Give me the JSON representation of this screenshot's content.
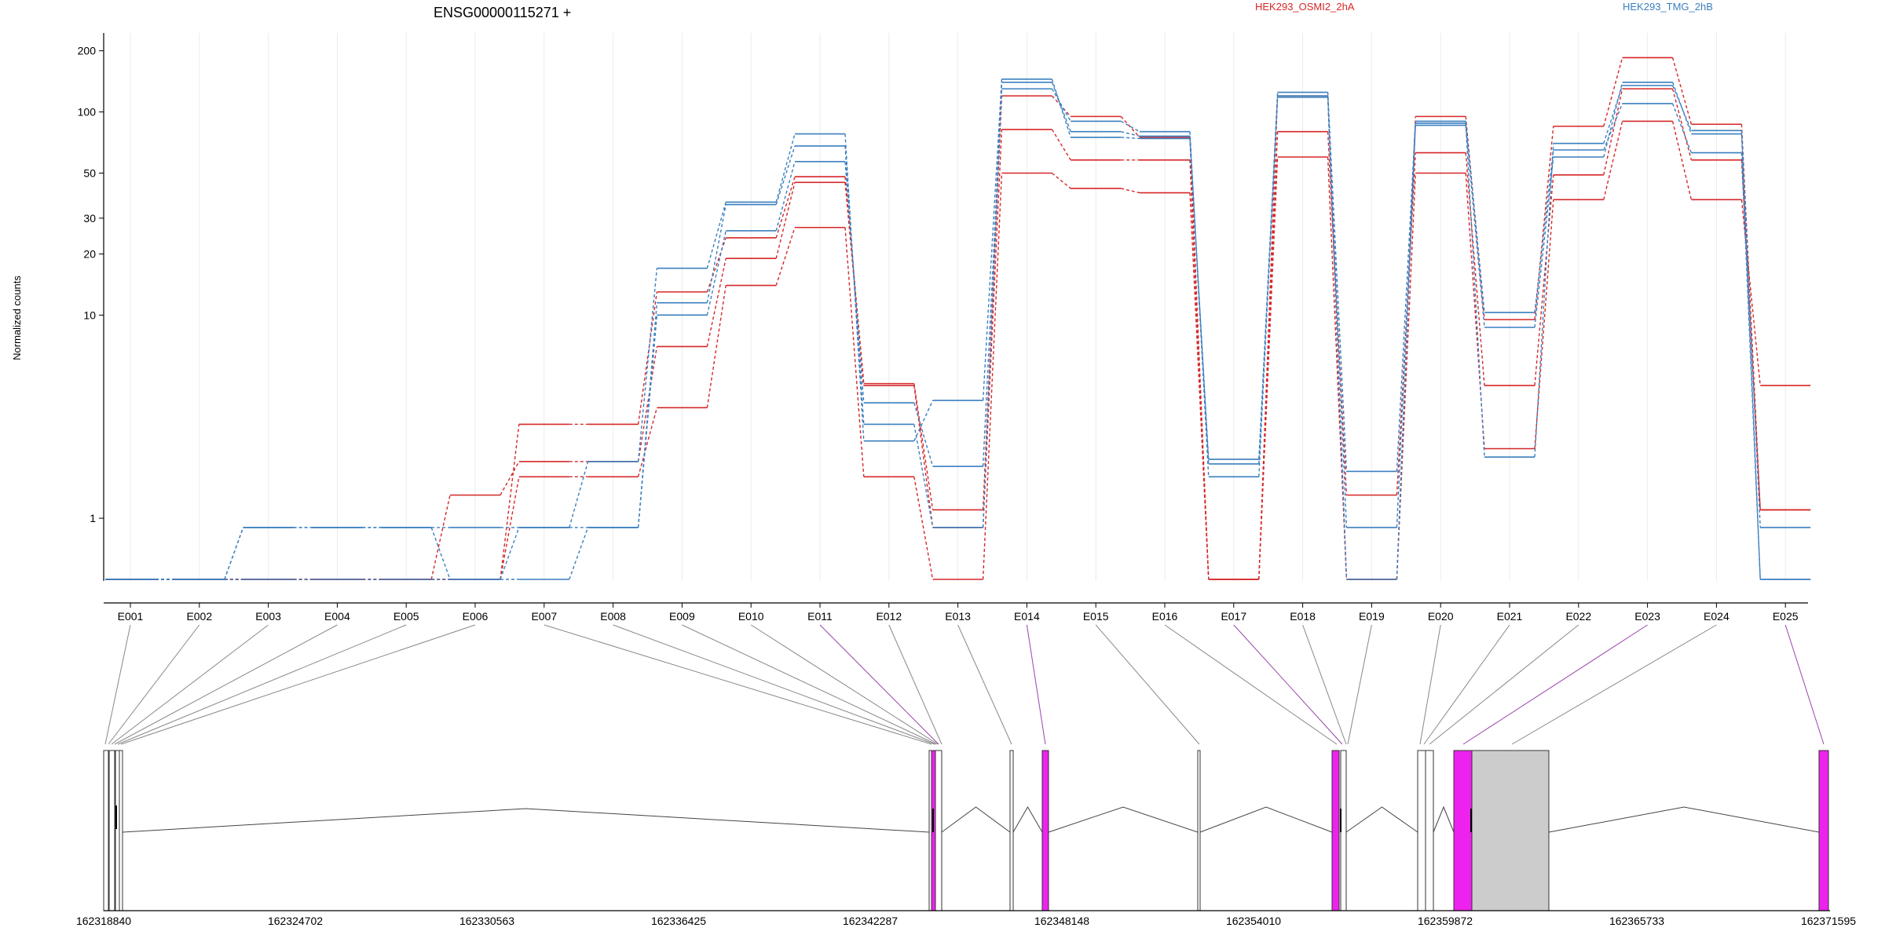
{
  "chart_data": [
    {
      "type": "line",
      "title": "ENSG00000115271 +",
      "ylabel": "Normalized counts",
      "yscale": "log",
      "ylim": [
        0.5,
        220
      ],
      "yticks": [
        1,
        10,
        20,
        30,
        50,
        100,
        200
      ],
      "grid": true,
      "categories": [
        "E001",
        "E002",
        "E003",
        "E004",
        "E005",
        "E006",
        "E007",
        "E008",
        "E009",
        "E010",
        "E011",
        "E012",
        "E013",
        "E014",
        "E015",
        "E016",
        "E017",
        "E018",
        "E019",
        "E020",
        "E021",
        "E022",
        "E023",
        "E024",
        "E025"
      ],
      "groups": [
        {
          "name": "HEK293_OSMI2_2hA",
          "color": "#d62728"
        },
        {
          "name": "HEK293_TMG_2hB",
          "color": "#3a7fbf"
        }
      ],
      "series": [
        {
          "group": "HEK293_OSMI2_2hA",
          "values": [
            0.5,
            0.5,
            0.5,
            0.5,
            0.5,
            0.5,
            1.6,
            1.6,
            3.5,
            14,
            27,
            1.6,
            0.5,
            50,
            42,
            40,
            0.5,
            60,
            0.5,
            50,
            2.2,
            37,
            90,
            37,
            4.5
          ]
        },
        {
          "group": "HEK293_OSMI2_2hA",
          "values": [
            0.5,
            0.5,
            0.5,
            0.5,
            0.5,
            1.3,
            1.9,
            1.9,
            7,
            19,
            45,
            4.5,
            0.9,
            82,
            58,
            58,
            0.5,
            80,
            1.3,
            63,
            4.5,
            49,
            130,
            58,
            1.1
          ]
        },
        {
          "group": "HEK293_OSMI2_2hA",
          "values": [
            0.5,
            0.5,
            0.5,
            0.5,
            0.5,
            0.5,
            2.9,
            2.9,
            13,
            24,
            48,
            4.6,
            1.1,
            120,
            95,
            75,
            0.5,
            120,
            0.5,
            95,
            9.5,
            85,
            185,
            87,
            1.1
          ]
        },
        {
          "group": "HEK293_TMG_2hB",
          "values": [
            0.5,
            0.5,
            0.9,
            0.9,
            0.9,
            0.5,
            0.5,
            0.9,
            10,
            26,
            57,
            3.7,
            1.8,
            130,
            90,
            80,
            1.6,
            120,
            0.5,
            88,
            2,
            70,
            135,
            81,
            0.9
          ]
        },
        {
          "group": "HEK293_TMG_2hB",
          "values": [
            0.5,
            0.5,
            0.5,
            0.5,
            0.5,
            0.5,
            0.9,
            0.9,
            11.5,
            35,
            68,
            2.9,
            0.9,
            140,
            80,
            76,
            1.85,
            125,
            1.7,
            90,
            10.3,
            65,
            110,
            63,
            0.5
          ]
        },
        {
          "group": "HEK293_TMG_2hB",
          "values": [
            0.5,
            0.5,
            0.9,
            0.9,
            0.9,
            0.9,
            0.9,
            1.9,
            17,
            36,
            78,
            2.4,
            3.8,
            145,
            75,
            74,
            1.95,
            118,
            0.9,
            86,
            8.7,
            60,
            140,
            78,
            0.5
          ]
        }
      ]
    },
    {
      "type": "diagram",
      "coordinate_ticks": [
        "162318840",
        "162324702",
        "162330563",
        "162336425",
        "162342287",
        "162348148",
        "162354010",
        "162359872",
        "162365733",
        "162371595"
      ],
      "exon_mapping": [
        "E001",
        "E002",
        "E003",
        "E004",
        "E005",
        "E006",
        "E007",
        "E008",
        "E009",
        "E010",
        "E011",
        "E012",
        "E013",
        "E014",
        "E015",
        "E016",
        "E017",
        "E018",
        "E019",
        "E020",
        "E021",
        "E022",
        "E023",
        "E024",
        "E025"
      ],
      "highlighted_exons": [
        "E011",
        "E014",
        "E017",
        "E023",
        "E025"
      ],
      "colors": {
        "highlight": "#ee22ee",
        "exon": "#cccccc",
        "line": "#444444",
        "highlight_line": "#9944aa"
      }
    }
  ]
}
